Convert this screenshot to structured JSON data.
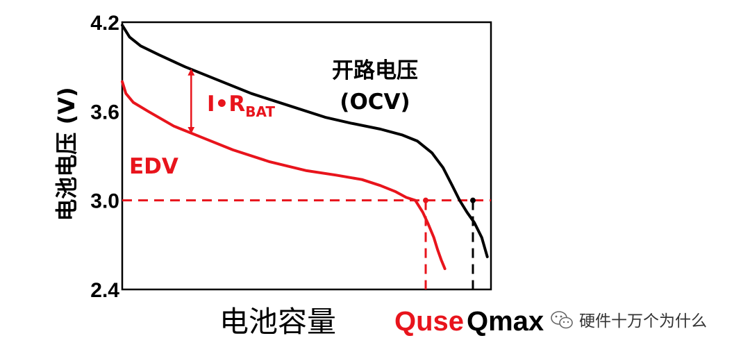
{
  "chart_data": {
    "type": "line",
    "ylabel": "电池电压 (V)",
    "xlabel": "电池容量",
    "ylim": [
      2.4,
      4.2
    ],
    "xlim": [
      0,
      100
    ],
    "y_ticks": [
      "4.2",
      "3.6",
      "3.0",
      "2.4"
    ],
    "y_tick_values": [
      4.2,
      3.6,
      3.0,
      2.4
    ],
    "grid": false,
    "colors": {
      "ocv": "#000000",
      "loaded": "#e8141c"
    },
    "series": [
      {
        "key": "ocv",
        "x": [
          0,
          2,
          5,
          10,
          17,
          25,
          35,
          45,
          55,
          62,
          70,
          76,
          80,
          84,
          87,
          89.5,
          91.5,
          93.5,
          95.5,
          97.5,
          99
        ],
        "y": [
          4.18,
          4.1,
          4.04,
          3.98,
          3.9,
          3.82,
          3.72,
          3.64,
          3.56,
          3.52,
          3.48,
          3.44,
          3.4,
          3.32,
          3.22,
          3.1,
          3.0,
          2.92,
          2.85,
          2.75,
          2.62
        ]
      },
      {
        "key": "loaded",
        "x": [
          0,
          1,
          3,
          7,
          14,
          22,
          30,
          40,
          50,
          58,
          65,
          70,
          74,
          77,
          79.5,
          81.5,
          83,
          84.5,
          85.5,
          86.5,
          87.5
        ],
        "y": [
          3.8,
          3.72,
          3.66,
          3.6,
          3.5,
          3.42,
          3.34,
          3.26,
          3.2,
          3.17,
          3.14,
          3.1,
          3.06,
          3.02,
          3.0,
          2.92,
          2.84,
          2.75,
          2.67,
          2.6,
          2.54
        ]
      }
    ],
    "annotations": {
      "ocv_line1": "开路电压",
      "ocv_line2": "(OCV)",
      "drop_main": "I•R",
      "drop_sub": "BAT",
      "edv": "EDV",
      "edv_value": 3.0,
      "quse": "Quse",
      "quse_x": 82.3,
      "qmax": "Qmax",
      "qmax_x": 95.1,
      "drop_arrow_x": 18.7
    }
  },
  "watermark": {
    "text": "硬件十万个为什么",
    "icon": "wechat-icon"
  }
}
